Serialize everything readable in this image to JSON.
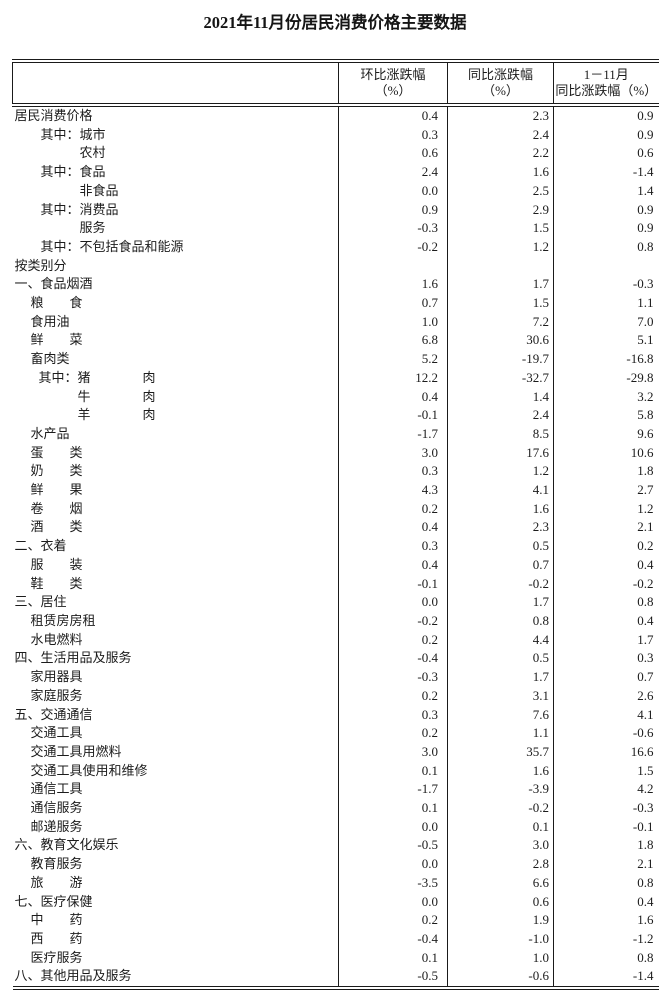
{
  "title": "2021年11月份居民消费价格主要数据",
  "table": {
    "header": {
      "mom": [
        "环比涨跌幅",
        "（%）"
      ],
      "yoy": [
        "同比涨跌幅",
        "（%）"
      ],
      "ytd": [
        "1－11月",
        "同比涨跌幅（%）"
      ]
    },
    "rows": [
      {
        "label": "居民消费价格",
        "level": 0,
        "mom": "0.4",
        "yoy": "2.3",
        "ytd": "0.9"
      },
      {
        "label": "其中：城市",
        "level": 1,
        "mom": "0.3",
        "yoy": "2.4",
        "ytd": "0.9"
      },
      {
        "label": "农村",
        "level": 2,
        "mom": "0.6",
        "yoy": "2.2",
        "ytd": "0.6"
      },
      {
        "label": "其中：食品",
        "level": 1,
        "mom": "2.4",
        "yoy": "1.6",
        "ytd": "-1.4"
      },
      {
        "label": "非食品",
        "level": 2,
        "mom": "0.0",
        "yoy": "2.5",
        "ytd": "1.4"
      },
      {
        "label": "其中：消费品",
        "level": 1,
        "mom": "0.9",
        "yoy": "2.9",
        "ytd": "0.9"
      },
      {
        "label": "服务",
        "level": 2,
        "mom": "-0.3",
        "yoy": "1.5",
        "ytd": "0.9"
      },
      {
        "label": "其中：不包括食品和能源",
        "level": 1,
        "mom": "-0.2",
        "yoy": "1.2",
        "ytd": "0.8"
      },
      {
        "label": "按类别分",
        "level": 0,
        "mom": "",
        "yoy": "",
        "ytd": ""
      },
      {
        "label": "一、食品烟酒",
        "level": 0,
        "mom": "1.6",
        "yoy": "1.7",
        "ytd": "-0.3"
      },
      {
        "label": "粮　　食",
        "level": 3,
        "mom": "0.7",
        "yoy": "1.5",
        "ytd": "1.1"
      },
      {
        "label": "食用油",
        "level": 3,
        "mom": "1.0",
        "yoy": "7.2",
        "ytd": "7.0"
      },
      {
        "label": "鲜　　菜",
        "level": 3,
        "mom": "6.8",
        "yoy": "30.6",
        "ytd": "5.1"
      },
      {
        "label": "畜肉类",
        "level": 3,
        "mom": "5.2",
        "yoy": "-19.7",
        "ytd": "-16.8"
      },
      {
        "label": "其中：猪　　　　肉",
        "level": 4,
        "mom": "12.2",
        "yoy": "-32.7",
        "ytd": "-29.8"
      },
      {
        "label": "牛　　　　肉",
        "level": 5,
        "mom": "0.4",
        "yoy": "1.4",
        "ytd": "3.2"
      },
      {
        "label": "羊　　　　肉",
        "level": 5,
        "mom": "-0.1",
        "yoy": "2.4",
        "ytd": "5.8"
      },
      {
        "label": "水产品",
        "level": 3,
        "mom": "-1.7",
        "yoy": "8.5",
        "ytd": "9.6"
      },
      {
        "label": "蛋　　类",
        "level": 3,
        "mom": "3.0",
        "yoy": "17.6",
        "ytd": "10.6"
      },
      {
        "label": "奶　　类",
        "level": 3,
        "mom": "0.3",
        "yoy": "1.2",
        "ytd": "1.8"
      },
      {
        "label": "鲜　　果",
        "level": 3,
        "mom": "4.3",
        "yoy": "4.1",
        "ytd": "2.7"
      },
      {
        "label": "卷　　烟",
        "level": 3,
        "mom": "0.2",
        "yoy": "1.6",
        "ytd": "1.2"
      },
      {
        "label": "酒　　类",
        "level": 3,
        "mom": "0.4",
        "yoy": "2.3",
        "ytd": "2.1"
      },
      {
        "label": "二、衣着",
        "level": 0,
        "mom": "0.3",
        "yoy": "0.5",
        "ytd": "0.2"
      },
      {
        "label": "服　　装",
        "level": 3,
        "mom": "0.4",
        "yoy": "0.7",
        "ytd": "0.4"
      },
      {
        "label": "鞋　　类",
        "level": 3,
        "mom": "-0.1",
        "yoy": "-0.2",
        "ytd": "-0.2"
      },
      {
        "label": "三、居住",
        "level": 0,
        "mom": "0.0",
        "yoy": "1.7",
        "ytd": "0.8"
      },
      {
        "label": "租赁房房租",
        "level": 3,
        "mom": "-0.2",
        "yoy": "0.8",
        "ytd": "0.4"
      },
      {
        "label": "水电燃料",
        "level": 3,
        "mom": "0.2",
        "yoy": "4.4",
        "ytd": "1.7"
      },
      {
        "label": "四、生活用品及服务",
        "level": 0,
        "mom": "-0.4",
        "yoy": "0.5",
        "ytd": "0.3"
      },
      {
        "label": "家用器具",
        "level": 3,
        "mom": "-0.3",
        "yoy": "1.7",
        "ytd": "0.7"
      },
      {
        "label": "家庭服务",
        "level": 3,
        "mom": "0.2",
        "yoy": "3.1",
        "ytd": "2.6"
      },
      {
        "label": "五、交通通信",
        "level": 0,
        "mom": "0.3",
        "yoy": "7.6",
        "ytd": "4.1"
      },
      {
        "label": "交通工具",
        "level": 3,
        "mom": "0.2",
        "yoy": "1.1",
        "ytd": "-0.6"
      },
      {
        "label": "交通工具用燃料",
        "level": 3,
        "mom": "3.0",
        "yoy": "35.7",
        "ytd": "16.6"
      },
      {
        "label": "交通工具使用和维修",
        "level": 3,
        "mom": "0.1",
        "yoy": "1.6",
        "ytd": "1.5"
      },
      {
        "label": "通信工具",
        "level": 3,
        "mom": "-1.7",
        "yoy": "-3.9",
        "ytd": "4.2"
      },
      {
        "label": "通信服务",
        "level": 3,
        "mom": "0.1",
        "yoy": "-0.2",
        "ytd": "-0.3"
      },
      {
        "label": "邮递服务",
        "level": 3,
        "mom": "0.0",
        "yoy": "0.1",
        "ytd": "-0.1"
      },
      {
        "label": "六、教育文化娱乐",
        "level": 0,
        "mom": "-0.5",
        "yoy": "3.0",
        "ytd": "1.8"
      },
      {
        "label": "教育服务",
        "level": 3,
        "mom": "0.0",
        "yoy": "2.8",
        "ytd": "2.1"
      },
      {
        "label": "旅　　游",
        "level": 3,
        "mom": "-3.5",
        "yoy": "6.6",
        "ytd": "0.8"
      },
      {
        "label": "七、医疗保健",
        "level": 0,
        "mom": "0.0",
        "yoy": "0.6",
        "ytd": "0.4"
      },
      {
        "label": "中　　药",
        "level": 3,
        "mom": "0.2",
        "yoy": "1.9",
        "ytd": "1.6"
      },
      {
        "label": "西　　药",
        "level": 3,
        "mom": "-0.4",
        "yoy": "-1.0",
        "ytd": "-1.2"
      },
      {
        "label": "医疗服务",
        "level": 3,
        "mom": "0.1",
        "yoy": "1.0",
        "ytd": "0.8"
      },
      {
        "label": "八、其他用品及服务",
        "level": 0,
        "mom": "-0.5",
        "yoy": "-0.6",
        "ytd": "-1.4"
      }
    ]
  }
}
